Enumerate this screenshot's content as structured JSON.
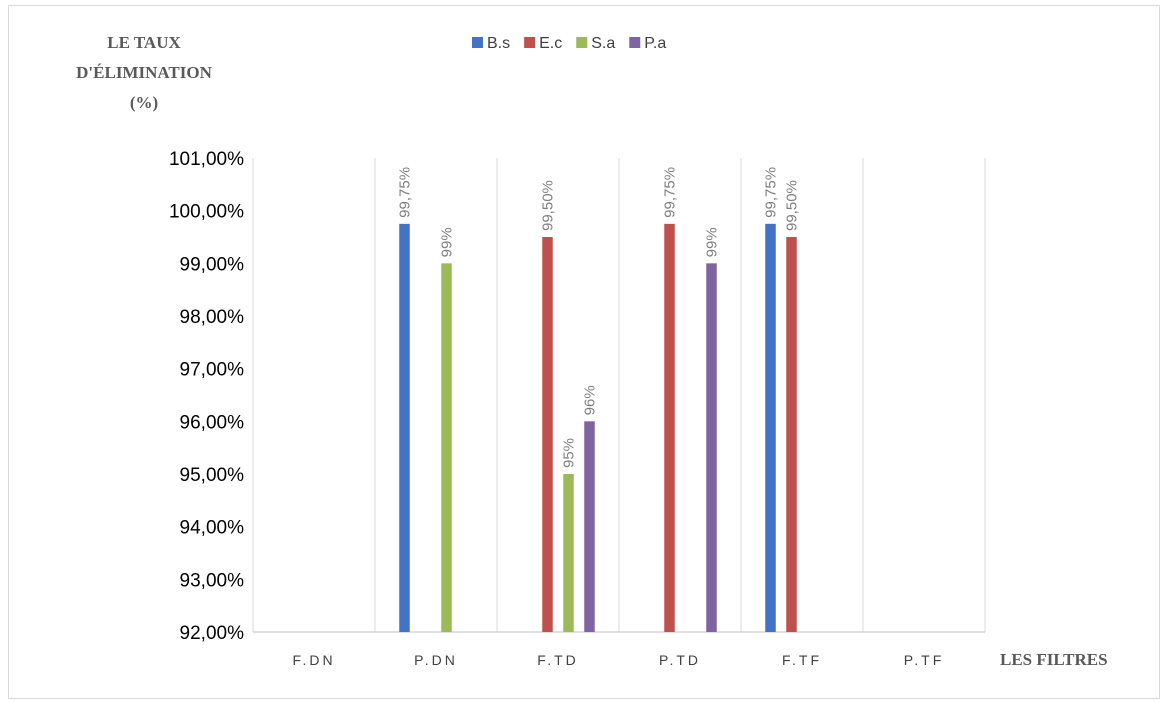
{
  "chart_data": {
    "type": "bar",
    "ylabel": [
      "LE TAUX",
      "D'ÉLIMINATION",
      "(%)"
    ],
    "xlabel": "LES FILTRES",
    "categories": [
      "F.DN",
      "P.DN",
      "F.TD",
      "P.TD",
      "F.TF",
      "P.TF"
    ],
    "ylim": [
      92,
      101
    ],
    "ytick_step": 1,
    "ytick_labels": [
      "92,00%",
      "93,00%",
      "94,00%",
      "95,00%",
      "96,00%",
      "97,00%",
      "98,00%",
      "99,00%",
      "100,00%",
      "101,00%"
    ],
    "grid": "vertical category separators",
    "legend_position": "top-center",
    "series": [
      {
        "name": "B.s",
        "color": "#4472c4",
        "values": [
          null,
          99.75,
          null,
          null,
          99.75,
          null
        ],
        "labels": [
          null,
          "99,75%",
          null,
          null,
          "99,75%",
          null
        ]
      },
      {
        "name": "E.c",
        "color": "#c0504d",
        "values": [
          null,
          null,
          99.5,
          99.75,
          99.5,
          null
        ],
        "labels": [
          null,
          null,
          "99,50%",
          "99,75%",
          "99,50%",
          null
        ]
      },
      {
        "name": "S.a",
        "color": "#9bbb59",
        "values": [
          null,
          99,
          95,
          null,
          null,
          null
        ],
        "labels": [
          null,
          "99%",
          "95%",
          null,
          null,
          null
        ]
      },
      {
        "name": "P.a",
        "color": "#8064a2",
        "values": [
          null,
          null,
          96,
          99,
          null,
          null
        ],
        "labels": [
          null,
          null,
          "96%",
          "99%",
          null,
          null
        ]
      }
    ]
  }
}
